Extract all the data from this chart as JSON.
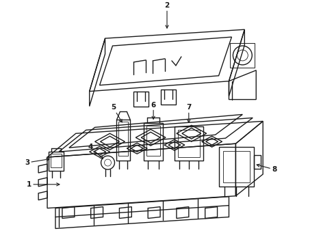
{
  "background_color": "#ffffff",
  "line_color": "#1a1a1a",
  "line_width": 1.0,
  "fig_w": 4.89,
  "fig_h": 3.6,
  "dpi": 100
}
